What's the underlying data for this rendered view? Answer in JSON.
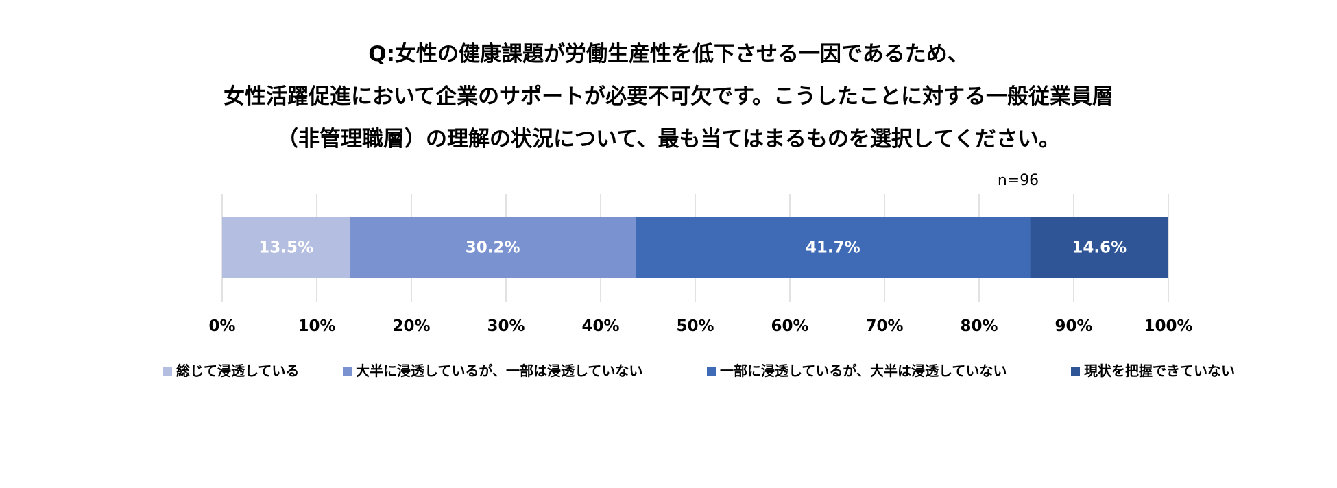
{
  "title": {
    "lines": [
      "Q:女性の健康課題が労働生産性を低下させる一因であるため、",
      "女性活躍促進において企業のサポートが必要不可欠です。こうしたことに対する一般従業員層",
      "（非管理職層）の理解の状況について、最も当てはまるものを選択してください。"
    ]
  },
  "chart_data": {
    "type": "bar",
    "orientation": "horizontal",
    "stacked": true,
    "title": "Q:女性の健康課題が労働生産性を低下させる一因であるため、女性活躍促進において企業のサポートが必要不可欠です。こうしたことに対する一般従業員層（非管理職層）の理解の状況について、最も当てはまるものを選択してください。",
    "note": "n=96",
    "xlim": [
      0,
      100
    ],
    "x_ticks": [
      "0%",
      "10%",
      "20%",
      "30%",
      "40%",
      "50%",
      "60%",
      "70%",
      "80%",
      "90%",
      "100%"
    ],
    "grid": true,
    "legend_position": "bottom",
    "series": [
      {
        "name": "総じて浸透している",
        "value": 13.5,
        "label": "13.5%",
        "color": "#B4BEE0"
      },
      {
        "name": "大半に浸透しているが、一部は浸透していない",
        "value": 30.2,
        "label": "30.2%",
        "color": "#7A93D0"
      },
      {
        "name": "一部に浸透しているが、大半は浸透していない",
        "value": 41.7,
        "label": "41.7%",
        "color": "#3F6BB6"
      },
      {
        "name": "現状を把握できていない",
        "value": 14.6,
        "label": "14.6%",
        "color": "#2F5597"
      }
    ],
    "colors": {
      "gridline": "#D9D9D9",
      "data_label": "#FFFFFF"
    }
  }
}
